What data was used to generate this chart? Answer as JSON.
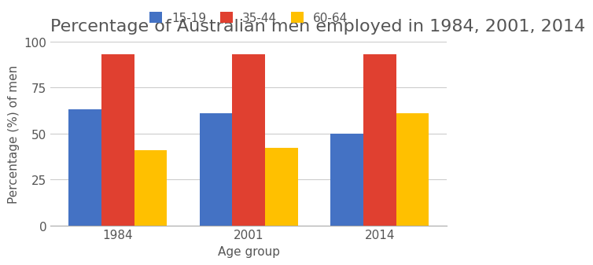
{
  "title": "Percentage of Australian men employed in 1984, 2001, 2014",
  "xlabel": "Age group",
  "ylabel": "Percentage (%) of men",
  "years": [
    "1984",
    "2001",
    "2014"
  ],
  "age_groups": [
    "15-19",
    "35-44",
    "60-64"
  ],
  "values": {
    "15-19": [
      63,
      61,
      50
    ],
    "35-44": [
      93,
      93,
      93
    ],
    "60-64": [
      41,
      42,
      61
    ]
  },
  "colors": {
    "15-19": "#4472C4",
    "35-44": "#E04030",
    "60-64": "#FFC000"
  },
  "ylim": [
    0,
    100
  ],
  "yticks": [
    0,
    25,
    50,
    75,
    100
  ],
  "bar_width": 0.25,
  "title_fontsize": 16,
  "axis_label_fontsize": 11,
  "tick_fontsize": 11,
  "legend_fontsize": 11,
  "background_color": "#ffffff",
  "grid_color": "#cccccc"
}
